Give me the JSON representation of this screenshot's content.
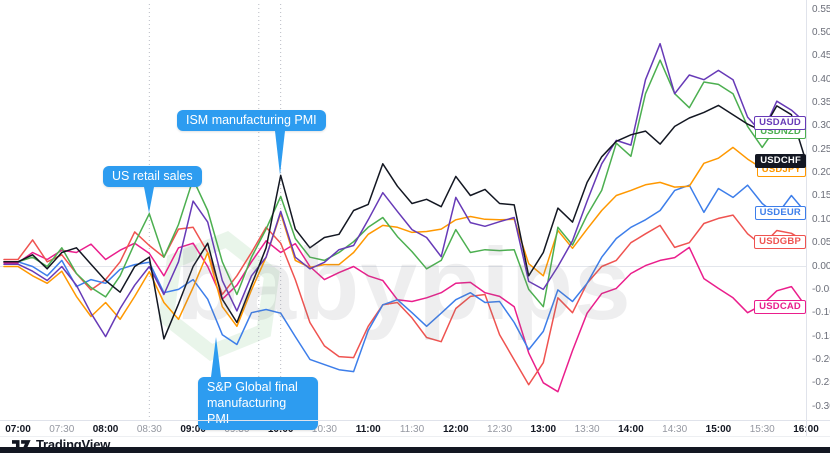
{
  "watermark": {
    "text": "babypips"
  },
  "branding": {
    "logo_text": "TradingView"
  },
  "chart_data": {
    "type": "line",
    "x_unit": "hour_of_day",
    "x_start": 7.0,
    "x_step_minutes": 10,
    "x_range": [
      7.0,
      16.0
    ],
    "ylim_pct": [
      -0.3,
      0.55
    ],
    "grid": "zero-line-only",
    "y_axis_ticks": [
      {
        "label": "0.55%",
        "value": 0.55
      },
      {
        "label": "0.50%",
        "value": 0.5
      },
      {
        "label": "0.45%",
        "value": 0.45
      },
      {
        "label": "0.40%",
        "value": 0.4
      },
      {
        "label": "0.35%",
        "value": 0.35
      },
      {
        "label": "0.30%",
        "value": 0.3
      },
      {
        "label": "0.25%",
        "value": 0.25
      },
      {
        "label": "0.20%",
        "value": 0.2
      },
      {
        "label": "0.15%",
        "value": 0.15
      },
      {
        "label": "0.10%",
        "value": 0.1
      },
      {
        "label": "0.05%",
        "value": 0.05
      },
      {
        "label": "0.00%",
        "value": 0.0
      },
      {
        "label": "-0.05%",
        "value": -0.05
      },
      {
        "label": "-0.10%",
        "value": -0.1
      },
      {
        "label": "-0.15%",
        "value": -0.15
      },
      {
        "label": "-0.20%",
        "value": -0.2
      },
      {
        "label": "-0.25%",
        "value": -0.25
      },
      {
        "label": "-0.30%",
        "value": -0.3
      }
    ],
    "x_axis_ticks": [
      {
        "label": "07:00",
        "major": true
      },
      {
        "label": "07:30",
        "major": false
      },
      {
        "label": "08:00",
        "major": true
      },
      {
        "label": "08:30",
        "major": false
      },
      {
        "label": "09:00",
        "major": true
      },
      {
        "label": "09:30",
        "major": false
      },
      {
        "label": "10:00",
        "major": true
      },
      {
        "label": "10:30",
        "major": false
      },
      {
        "label": "11:00",
        "major": true
      },
      {
        "label": "11:30",
        "major": false
      },
      {
        "label": "12:00",
        "major": true
      },
      {
        "label": "12:30",
        "major": false
      },
      {
        "label": "13:00",
        "major": true
      },
      {
        "label": "13:30",
        "major": false
      },
      {
        "label": "14:00",
        "major": true
      },
      {
        "label": "14:30",
        "major": false
      },
      {
        "label": "15:00",
        "major": true
      },
      {
        "label": "15:30",
        "major": false
      },
      {
        "label": "16:00",
        "major": true
      }
    ],
    "event_lines_time": [
      8.5,
      9.75,
      10.0
    ],
    "annotations": [
      {
        "id": "us-retail-sales",
        "label": "US retail sales",
        "box_x": 103,
        "box_y": 166,
        "tail_dir": "down",
        "tail_x": 149,
        "tail_len": 26
      },
      {
        "id": "ism-manufacturing-pmi",
        "label": "ISM manufacturing PMI",
        "box_x": 177,
        "box_y": 110,
        "tail_dir": "down",
        "tail_x": 280,
        "tail_len": 44
      },
      {
        "id": "sp-global-final-manufacturing-pmi",
        "label": "S&P Global final manufacturing PMI",
        "box_x": 198,
        "box_y": 377,
        "tail_dir": "up",
        "tail_x": 216,
        "tail_len": 40,
        "wrap": true
      }
    ],
    "series": [
      {
        "name": "USDCAD",
        "color": "#EA1E8C",
        "values": [
          0.008,
          0.03,
          0.015,
          0.035,
          0.03,
          0.048,
          0.015,
          0.035,
          0.05,
          0.028,
          -0.02,
          0.04,
          0.05,
          0.0,
          -0.07,
          -0.04,
          0.01,
          0.055,
          0.03,
          0.049,
          0.0,
          -0.028,
          -0.013,
          0.0,
          -0.02,
          -0.03,
          -0.071,
          -0.075,
          -0.067,
          -0.056,
          -0.036,
          -0.034,
          -0.056,
          -0.064,
          -0.086,
          -0.185,
          -0.249,
          -0.268,
          -0.18,
          -0.1,
          -0.058,
          -0.047,
          -0.015,
          0.002,
          0.013,
          0.019,
          0.041,
          -0.026,
          -0.047,
          -0.067,
          -0.099,
          -0.082,
          -0.052,
          -0.043,
          -0.086
        ]
      },
      {
        "name": "USDGBP",
        "color": "#EF5350",
        "values": [
          0.015,
          0.057,
          0.01,
          0.025,
          -0.015,
          -0.05,
          -0.028,
          0.01,
          0.074,
          0.045,
          0.02,
          0.08,
          0.084,
          0.03,
          -0.06,
          -0.02,
          0.03,
          0.084,
          0.05,
          -0.028,
          -0.12,
          -0.17,
          -0.193,
          -0.195,
          -0.128,
          -0.082,
          -0.077,
          -0.11,
          -0.152,
          -0.161,
          -0.09,
          -0.064,
          -0.06,
          -0.146,
          -0.2,
          -0.253,
          -0.206,
          -0.067,
          -0.099,
          -0.036,
          0.0,
          0.013,
          0.051,
          0.07,
          0.088,
          0.041,
          0.051,
          0.092,
          0.103,
          0.11,
          0.07,
          0.045,
          0.077,
          0.071,
          0.052
        ]
      },
      {
        "name": "USDEUR",
        "color": "#3D7EEA",
        "values": [
          0.01,
          0.0,
          -0.02,
          0.013,
          -0.043,
          -0.028,
          -0.036,
          -0.006,
          0.004,
          0.009,
          -0.056,
          -0.049,
          -0.028,
          -0.07,
          -0.146,
          -0.167,
          -0.099,
          -0.092,
          -0.1,
          -0.15,
          -0.199,
          -0.21,
          -0.221,
          -0.225,
          -0.137,
          -0.082,
          -0.071,
          -0.099,
          -0.128,
          -0.1,
          -0.071,
          -0.056,
          -0.077,
          -0.075,
          -0.12,
          -0.178,
          -0.139,
          -0.05,
          -0.075,
          -0.036,
          0.02,
          0.06,
          0.084,
          0.1,
          0.12,
          0.163,
          0.174,
          0.116,
          0.167,
          0.148,
          0.174,
          0.135,
          0.11,
          0.152,
          0.115
        ]
      },
      {
        "name": "USDJPY",
        "color": "#FF9800",
        "values": [
          0.0,
          -0.02,
          -0.036,
          -0.01,
          -0.064,
          -0.107,
          -0.077,
          -0.113,
          -0.064,
          -0.011,
          -0.077,
          -0.113,
          -0.045,
          0.03,
          -0.086,
          -0.128,
          -0.05,
          0.02,
          0.114,
          0.013,
          -0.002,
          0.004,
          0.004,
          0.03,
          0.069,
          0.088,
          0.084,
          0.073,
          0.075,
          0.08,
          0.1,
          0.107,
          0.101,
          0.1,
          0.101,
          0.006,
          -0.02,
          0.077,
          0.039,
          0.08,
          0.12,
          0.152,
          0.163,
          0.175,
          0.18,
          0.17,
          0.172,
          0.221,
          0.232,
          0.255,
          0.23,
          0.21,
          0.206,
          0.22,
          0.206
        ]
      },
      {
        "name": "USDNZD",
        "color": "#4CAF50",
        "values": [
          0.01,
          0.02,
          0.0,
          0.04,
          -0.015,
          -0.045,
          -0.065,
          -0.02,
          0.05,
          0.113,
          0.02,
          0.09,
          0.187,
          0.12,
          0.01,
          -0.06,
          0.02,
          0.08,
          0.15,
          0.06,
          0.02,
          0.013,
          0.03,
          0.053,
          0.084,
          0.105,
          0.064,
          0.032,
          -0.005,
          0.013,
          0.079,
          0.03,
          0.036,
          0.034,
          0.036,
          -0.049,
          -0.086,
          0.084,
          0.046,
          0.11,
          0.163,
          0.264,
          0.236,
          0.37,
          0.442,
          0.37,
          0.34,
          0.395,
          0.39,
          0.37,
          0.3,
          0.255,
          0.3,
          0.29,
          0.287
        ]
      },
      {
        "name": "USDAUD",
        "color": "#673AB7",
        "values": [
          0.005,
          -0.01,
          -0.03,
          0.0,
          -0.04,
          -0.1,
          -0.15,
          -0.09,
          -0.04,
          0.0,
          -0.06,
          0.01,
          0.14,
          0.095,
          -0.03,
          -0.095,
          -0.02,
          0.02,
          0.118,
          0.02,
          -0.005,
          0.009,
          0.036,
          0.045,
          0.1,
          0.158,
          0.118,
          0.079,
          0.062,
          0.021,
          0.148,
          0.094,
          0.086,
          0.096,
          0.105,
          -0.032,
          -0.049,
          0.0,
          0.055,
          0.14,
          0.22,
          0.27,
          0.26,
          0.4,
          0.477,
          0.37,
          0.41,
          0.4,
          0.42,
          0.4,
          0.32,
          0.285,
          0.354,
          0.335,
          0.307
        ]
      },
      {
        "name": "USDCHF",
        "color": "#131722",
        "filled_label": true,
        "values": [
          0.01,
          0.025,
          -0.005,
          0.03,
          0.04,
          0.005,
          -0.03,
          -0.055,
          0.0,
          0.02,
          -0.155,
          -0.08,
          0.0,
          0.05,
          -0.07,
          -0.12,
          -0.04,
          0.04,
          0.195,
          0.08,
          0.04,
          0.062,
          0.069,
          0.12,
          0.133,
          0.22,
          0.172,
          0.135,
          0.144,
          0.128,
          0.193,
          0.152,
          0.165,
          0.135,
          0.132,
          -0.02,
          0.03,
          0.125,
          0.095,
          0.18,
          0.235,
          0.268,
          0.282,
          0.29,
          0.262,
          0.3,
          0.318,
          0.33,
          0.345,
          0.325,
          0.305,
          0.29,
          0.344,
          0.325,
          0.225
        ]
      }
    ],
    "final_values_pct": {
      "USDAUD": 0.31,
      "USDNZD": 0.29,
      "USDCHF": 0.225,
      "USDJPY": 0.205,
      "USDEUR": 0.115,
      "USDGBP": 0.05,
      "USDCAD": -0.085
    }
  }
}
